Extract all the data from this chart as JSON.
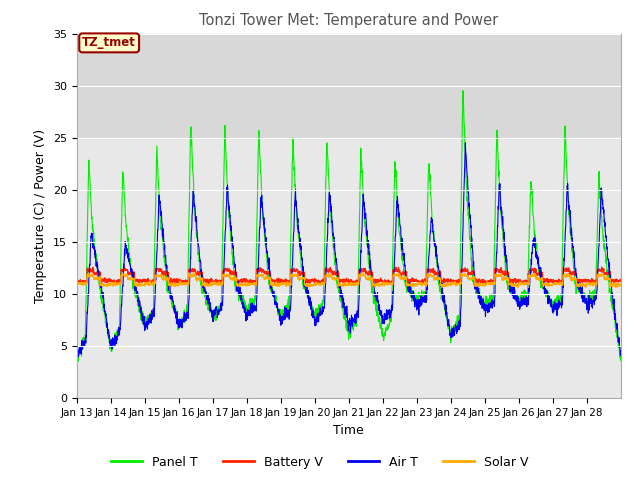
{
  "title": "Tonzi Tower Met: Temperature and Power",
  "xlabel": "Time",
  "ylabel": "Temperature (C) / Power (V)",
  "ylim": [
    0,
    35
  ],
  "panel_color": "#00ee00",
  "battery_color": "#ff2200",
  "air_color": "#0000ee",
  "solar_color": "#ffaa00",
  "bg_color": "#ffffff",
  "plot_bg_color": "#e8e8e8",
  "grid_color": "#ffffff",
  "shaded_top_color": "#d8d8d8",
  "annotation_text": "TZ_tmet",
  "annotation_bg": "#ffffcc",
  "annotation_fg": "#990000",
  "legend_labels": [
    "Panel T",
    "Battery V",
    "Air T",
    "Solar V"
  ],
  "xtick_labels": [
    "Jan 13",
    "Jan 14",
    "Jan 15",
    "Jan 16",
    "Jan 17",
    "Jan 18",
    "Jan 19",
    "Jan 20",
    "Jan 21",
    "Jan 22",
    "Jan 23",
    "Jan 24",
    "Jan 25",
    "Jan 26",
    "Jan 27",
    "Jan 28"
  ]
}
